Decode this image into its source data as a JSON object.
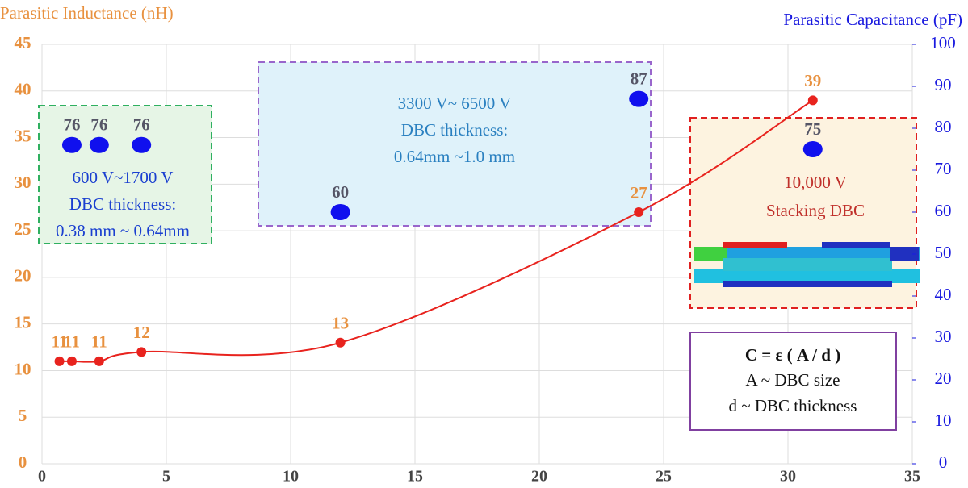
{
  "chart_data": {
    "type": "line",
    "y_label": "Parasitic Inductance (nH)",
    "y2_label": "Parasitic Capacitance (pF)",
    "xlim": [
      0,
      35
    ],
    "xticks": [
      0,
      5,
      10,
      15,
      20,
      25,
      30,
      35
    ],
    "ylim": [
      0,
      45
    ],
    "yticks": [
      0,
      5,
      10,
      15,
      20,
      25,
      30,
      35,
      40,
      45
    ],
    "y2lim": [
      0,
      100
    ],
    "y2ticks": [
      0,
      10,
      20,
      30,
      40,
      50,
      60,
      70,
      80,
      90,
      100
    ],
    "grid": true,
    "series": [
      {
        "color": "#e8231e",
        "label_color": "#e8913f",
        "mark": "line",
        "x": [
          0.7,
          1.2,
          2.3,
          4,
          12,
          24,
          31
        ],
        "values": [
          11,
          11,
          11,
          12,
          13,
          27,
          39
        ]
      },
      {
        "color": "#1010ee",
        "label_color": "#555566",
        "mark": "dot",
        "axis": "y2",
        "x": [
          1.2,
          2.3,
          4,
          12,
          24,
          31
        ],
        "values": [
          76,
          76,
          76,
          60,
          87,
          75
        ]
      }
    ],
    "annotations": [
      {
        "lines": [
          "600 V~1700 V",
          "DBC thickness:",
          "0.38 mm ~ 0.64mm"
        ]
      },
      {
        "lines": [
          "3300 V~ 6500 V",
          "DBC thickness:",
          "0.64mm ~1.0 mm"
        ]
      },
      {
        "lines": [
          "10,000 V",
          "Stacking DBC"
        ]
      },
      {
        "lines": [
          "C = ε ( A / d )",
          "A ~ DBC size",
          "d ~ DBC thickness"
        ]
      }
    ]
  }
}
